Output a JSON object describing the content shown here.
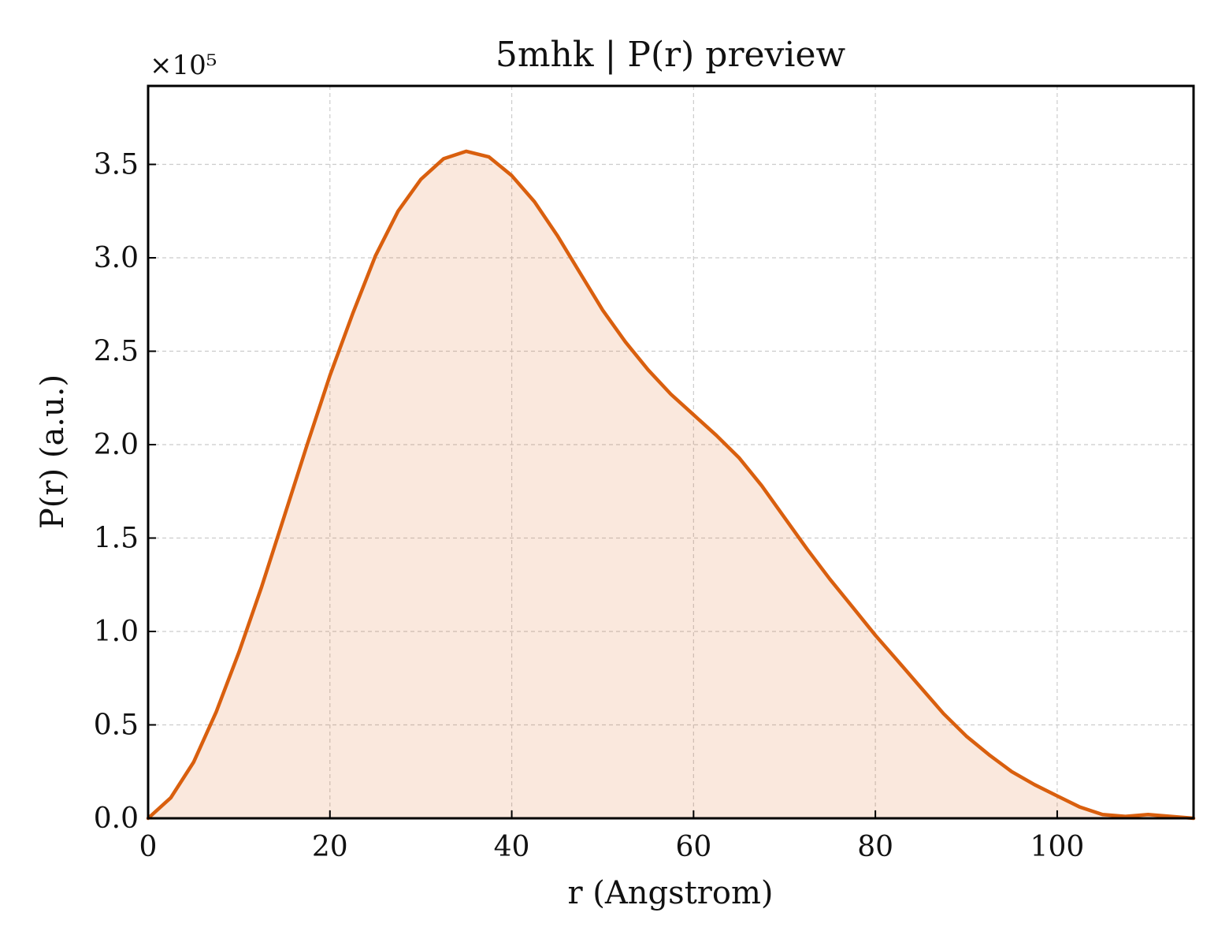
{
  "chart_data": {
    "type": "area",
    "title": "5mhk | P(r) preview",
    "xlabel": "r (Angstrom)",
    "ylabel": "P(r) (a.u.)",
    "y_scale_factor": "×10⁵",
    "xlim": [
      0,
      115
    ],
    "ylim": [
      0,
      3.92
    ],
    "y_unit_multiplier": 100000,
    "x_ticks": [
      0,
      20,
      40,
      60,
      80,
      100
    ],
    "x_tick_labels": [
      "0",
      "20",
      "40",
      "60",
      "80",
      "100"
    ],
    "y_ticks": [
      0,
      0.5,
      1.0,
      1.5,
      2.0,
      2.5,
      3.0,
      3.5
    ],
    "y_tick_labels": [
      "0.0",
      "0.5",
      "1.0",
      "1.5",
      "2.0",
      "2.5",
      "3.0",
      "3.5"
    ],
    "grid": true,
    "legend": "none",
    "line_color": "#d95f0e",
    "fill_color": "#d95f0e",
    "fill_opacity": 0.14,
    "series": [
      {
        "x": [
          0,
          2.5,
          5,
          7.5,
          10,
          12.5,
          15,
          17.5,
          20,
          22.5,
          25,
          27.5,
          30,
          32.5,
          35,
          37.5,
          40,
          42.5,
          45,
          47.5,
          50,
          52.5,
          55,
          57.5,
          60,
          62.5,
          65,
          67.5,
          70,
          72.5,
          75,
          77.5,
          80,
          82.5,
          85,
          87.5,
          90,
          92.5,
          95,
          97.5,
          100,
          102.5,
          105,
          107.5,
          110,
          112.5,
          115
        ],
        "y": [
          0.0,
          0.11,
          0.3,
          0.57,
          0.89,
          1.24,
          1.62,
          2.0,
          2.37,
          2.7,
          3.01,
          3.25,
          3.42,
          3.53,
          3.57,
          3.54,
          3.44,
          3.3,
          3.12,
          2.92,
          2.72,
          2.55,
          2.4,
          2.27,
          2.16,
          2.05,
          1.93,
          1.78,
          1.61,
          1.44,
          1.28,
          1.13,
          0.98,
          0.84,
          0.7,
          0.56,
          0.44,
          0.34,
          0.25,
          0.18,
          0.12,
          0.06,
          0.02,
          0.01,
          0.02,
          0.01,
          0.0
        ]
      }
    ]
  }
}
